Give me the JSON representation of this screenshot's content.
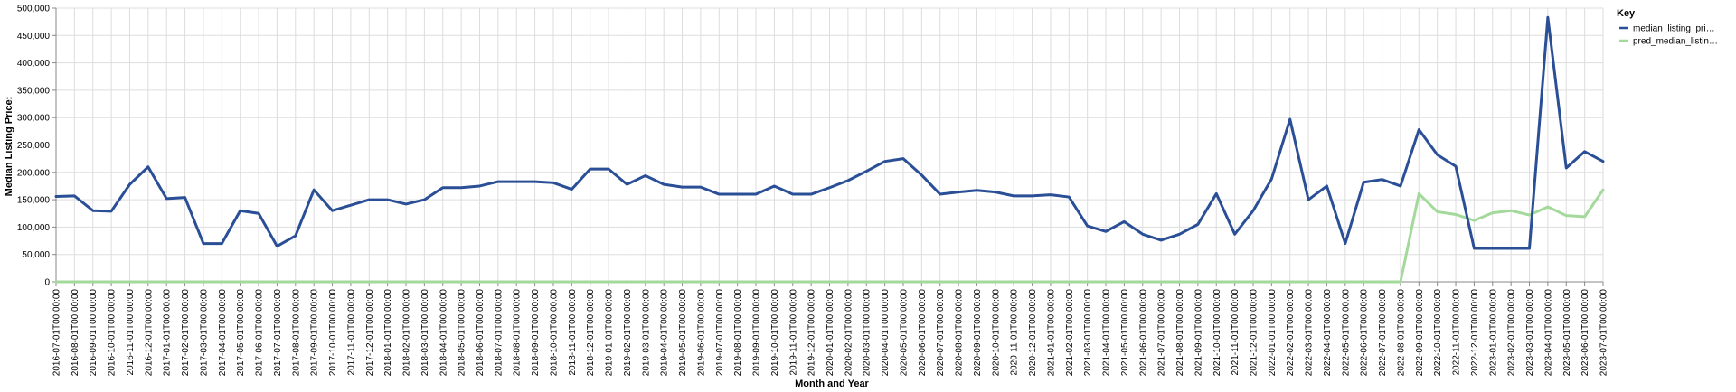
{
  "chart_data": {
    "type": "line",
    "xlabel": "Month and Year",
    "ylabel": "Median Listing Price:",
    "ylim": [
      0,
      500000
    ],
    "y_ticks": [
      0,
      50000,
      100000,
      150000,
      200000,
      250000,
      300000,
      350000,
      400000,
      450000,
      500000
    ],
    "y_tick_labels": [
      "0",
      "50,000",
      "100,000",
      "150,000",
      "200,000",
      "250,000",
      "300,000",
      "350,000",
      "400,000",
      "450,000",
      "500,000"
    ],
    "grid": true,
    "legend": {
      "title": "Key",
      "position": "top-right"
    },
    "categories": [
      "2016-07-01T00:00:00",
      "2016-08-01T00:00:00",
      "2016-09-01T00:00:00",
      "2016-10-01T00:00:00",
      "2016-11-01T00:00:00",
      "2016-12-01T00:00:00",
      "2017-01-01T00:00:00",
      "2017-02-01T00:00:00",
      "2017-03-01T00:00:00",
      "2017-04-01T00:00:00",
      "2017-05-01T00:00:00",
      "2017-06-01T00:00:00",
      "2017-07-01T00:00:00",
      "2017-08-01T00:00:00",
      "2017-09-01T00:00:00",
      "2017-10-01T00:00:00",
      "2017-11-01T00:00:00",
      "2017-12-01T00:00:00",
      "2018-01-01T00:00:00",
      "2018-02-01T00:00:00",
      "2018-03-01T00:00:00",
      "2018-04-01T00:00:00",
      "2018-05-01T00:00:00",
      "2018-06-01T00:00:00",
      "2018-07-01T00:00:00",
      "2018-08-01T00:00:00",
      "2018-09-01T00:00:00",
      "2018-10-01T00:00:00",
      "2018-11-01T00:00:00",
      "2018-12-01T00:00:00",
      "2019-01-01T00:00:00",
      "2019-02-01T00:00:00",
      "2019-03-01T00:00:00",
      "2019-04-01T00:00:00",
      "2019-05-01T00:00:00",
      "2019-06-01T00:00:00",
      "2019-07-01T00:00:00",
      "2019-08-01T00:00:00",
      "2019-09-01T00:00:00",
      "2019-10-01T00:00:00",
      "2019-11-01T00:00:00",
      "2019-12-01T00:00:00",
      "2020-01-01T00:00:00",
      "2020-02-01T00:00:00",
      "2020-03-01T00:00:00",
      "2020-04-01T00:00:00",
      "2020-05-01T00:00:00",
      "2020-06-01T00:00:00",
      "2020-07-01T00:00:00",
      "2020-08-01T00:00:00",
      "2020-09-01T00:00:00",
      "2020-10-01T00:00:00",
      "2020-11-01T00:00:00",
      "2020-12-01T00:00:00",
      "2021-01-01T00:00:00",
      "2021-02-01T00:00:00",
      "2021-03-01T00:00:00",
      "2021-04-01T00:00:00",
      "2021-05-01T00:00:00",
      "2021-06-01T00:00:00",
      "2021-07-01T00:00:00",
      "2021-08-01T00:00:00",
      "2021-09-01T00:00:00",
      "2021-10-01T00:00:00",
      "2021-11-01T00:00:00",
      "2021-12-01T00:00:00",
      "2022-01-01T00:00:00",
      "2022-02-01T00:00:00",
      "2022-03-01T00:00:00",
      "2022-04-01T00:00:00",
      "2022-05-01T00:00:00",
      "2022-06-01T00:00:00",
      "2022-07-01T00:00:00",
      "2022-08-01T00:00:00",
      "2022-09-01T00:00:00",
      "2022-10-01T00:00:00",
      "2022-11-01T00:00:00",
      "2022-12-01T00:00:00",
      "2023-01-01T00:00:00",
      "2023-02-01T00:00:00",
      "2023-03-01T00:00:00",
      "2023-04-01T00:00:00",
      "2023-05-01T00:00:00",
      "2023-06-01T00:00:00",
      "2023-07-01T00:00:00"
    ],
    "series": [
      {
        "name": "median_listing_pri…",
        "color": "#2a4f97",
        "values": [
          156000,
          157000,
          130000,
          129000,
          178000,
          210000,
          152000,
          154000,
          70000,
          70000,
          130000,
          125000,
          65000,
          84000,
          168000,
          130000,
          140000,
          150000,
          150000,
          142000,
          150000,
          172000,
          172000,
          175000,
          183000,
          183000,
          183000,
          181000,
          169000,
          206000,
          206000,
          178000,
          194000,
          178000,
          173000,
          173000,
          160000,
          160000,
          160000,
          175000,
          160000,
          160000,
          172000,
          185000,
          202000,
          220000,
          225000,
          195000,
          160000,
          164000,
          167000,
          164000,
          157000,
          157000,
          159000,
          155000,
          102000,
          92000,
          110000,
          87000,
          76000,
          87000,
          105000,
          161000,
          87000,
          130000,
          188000,
          297000,
          150000,
          175000,
          70000,
          182000,
          187000,
          175000,
          278000,
          232000,
          211000,
          61000,
          61000,
          61000,
          61000,
          483000,
          208000,
          238000,
          220000
        ]
      },
      {
        "name": "pred_median_listin…",
        "color": "#a3d99a",
        "values": [
          0,
          0,
          0,
          0,
          0,
          0,
          0,
          0,
          0,
          0,
          0,
          0,
          0,
          0,
          0,
          0,
          0,
          0,
          0,
          0,
          0,
          0,
          0,
          0,
          0,
          0,
          0,
          0,
          0,
          0,
          0,
          0,
          0,
          0,
          0,
          0,
          0,
          0,
          0,
          0,
          0,
          0,
          0,
          0,
          0,
          0,
          0,
          0,
          0,
          0,
          0,
          0,
          0,
          0,
          0,
          0,
          0,
          0,
          0,
          0,
          0,
          0,
          0,
          0,
          0,
          0,
          0,
          0,
          0,
          0,
          0,
          0,
          0,
          0,
          161000,
          128000,
          123000,
          112000,
          126000,
          130000,
          122000,
          137000,
          121000,
          119000,
          168000
        ]
      }
    ]
  }
}
